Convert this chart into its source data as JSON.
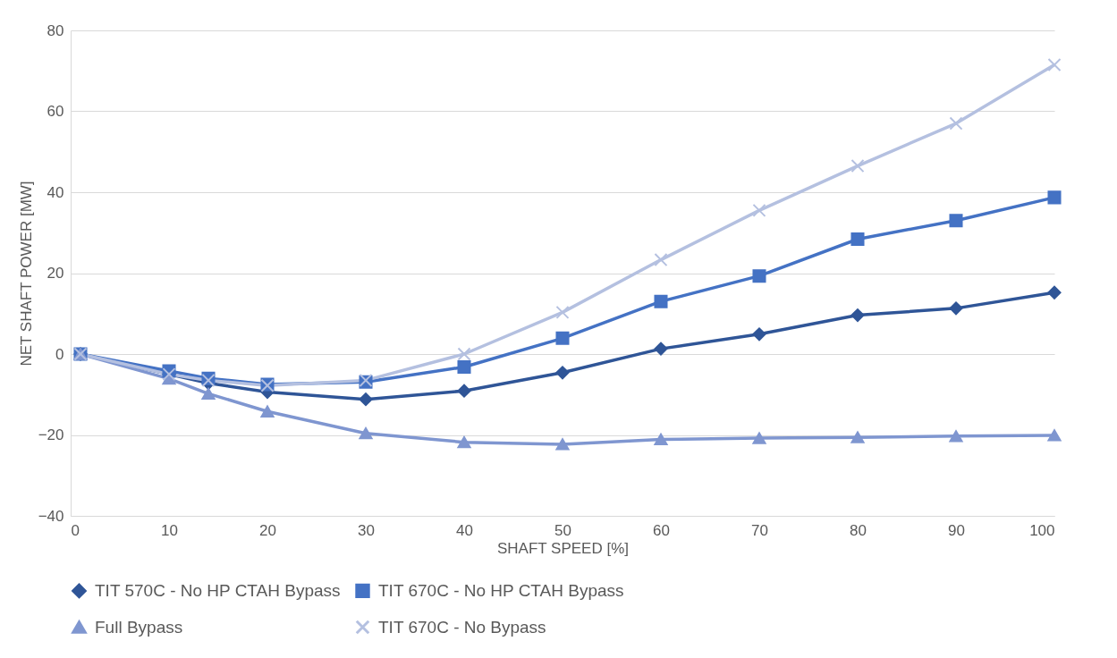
{
  "chart_data": {
    "type": "line",
    "xlabel": "SHAFT SPEED [%]",
    "ylabel": "NET SHAFT POWER [MW]",
    "x": [
      1,
      10,
      14,
      20,
      30,
      40,
      50,
      60,
      70,
      80,
      90,
      100
    ],
    "xlim": [
      0,
      100
    ],
    "xticks": [
      0,
      10,
      20,
      30,
      40,
      50,
      60,
      70,
      80,
      90,
      100
    ],
    "ylim": [
      -40,
      80
    ],
    "yticks": [
      -40,
      -20,
      0,
      20,
      40,
      60,
      80
    ],
    "grid": "y",
    "legend": "bottom",
    "line_style": "solid",
    "series": [
      {
        "name": "TIT 570C - No HP CTAH Bypass",
        "color": "#2f5597",
        "marker": "diamond",
        "values": [
          0,
          -5,
          -7.2,
          -9.4,
          -11.2,
          -9.1,
          -4.6,
          1.3,
          4.9,
          9.6,
          11.3,
          15.2
        ]
      },
      {
        "name": "TIT 670C - No HP CTAH Bypass",
        "color": "#4472c4",
        "marker": "square",
        "values": [
          0,
          -4.2,
          -6,
          -7.5,
          -6.9,
          -3.2,
          3.9,
          13,
          19.3,
          28.4,
          33,
          38.7
        ]
      },
      {
        "name": "Full Bypass",
        "color": "#7f96d0",
        "marker": "triangle",
        "values": [
          0,
          -6.1,
          -9.8,
          -14.2,
          -19.6,
          -21.8,
          -22.3,
          -21.1,
          -20.8,
          -20.6,
          -20.3,
          -20.1
        ]
      },
      {
        "name": "TIT 670C - No Bypass",
        "color": "#b4c0e0",
        "marker": "cross",
        "values": [
          0,
          -5,
          -6.5,
          -7.8,
          -6.5,
          0,
          10.3,
          23.3,
          35.5,
          46.5,
          57,
          71.5
        ]
      }
    ]
  }
}
